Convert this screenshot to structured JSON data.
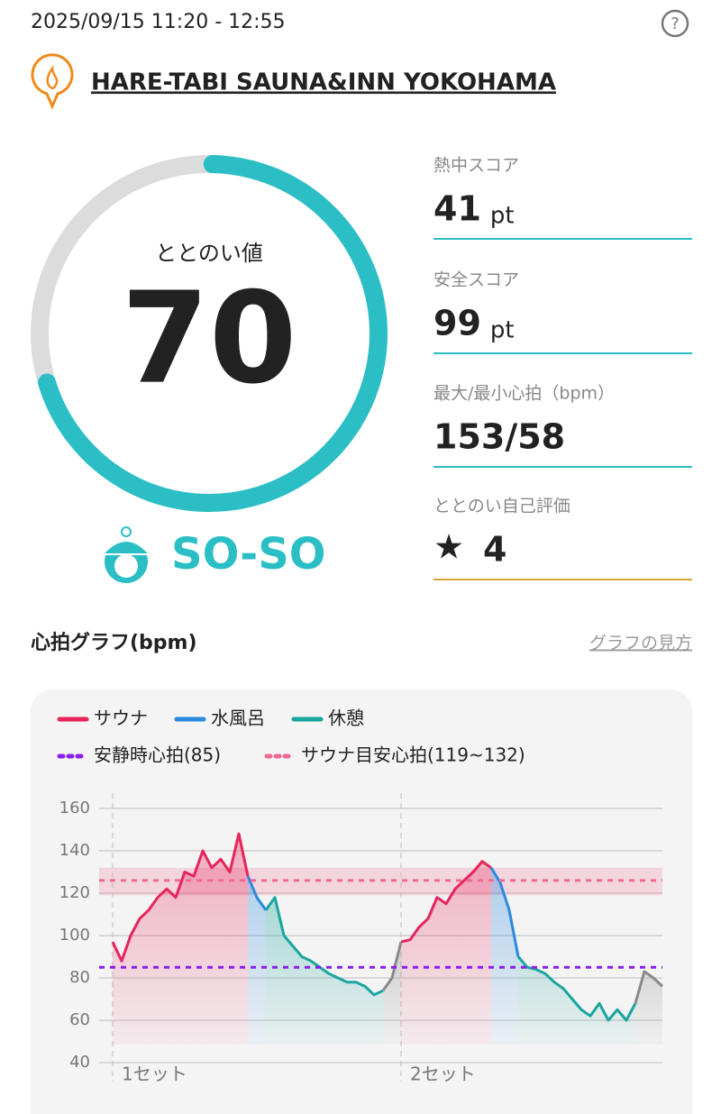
{
  "header": {
    "datetime": "2025/09/15 11:20 - 12:55",
    "venue": "HARE-TABI SAUNA&INN YOKOHAMA"
  },
  "score": {
    "label": "ととのい値",
    "value": 70,
    "range": [
      0,
      100
    ],
    "status": "SO-SO"
  },
  "metrics": [
    {
      "label": "熱中スコア",
      "value": "41",
      "unit": "pt"
    },
    {
      "label": "安全スコア",
      "value": "99",
      "unit": "pt"
    },
    {
      "label": "最大/最小心拍（bpm）",
      "value": "153/58"
    },
    {
      "label": "ととのい自己評価",
      "value": "4"
    }
  ],
  "graph_section": {
    "title": "心拍グラフ(bpm)",
    "link": "グラフの見方"
  },
  "chart_data": {
    "type": "line",
    "ylim": [
      40,
      160
    ],
    "yticks": [
      40,
      60,
      80,
      100,
      120,
      140,
      160
    ],
    "grid": true,
    "set_labels": [
      "1セット",
      "2セット"
    ],
    "rest_hr": {
      "label": "安静時心拍(85)",
      "value": 85,
      "color": "#8a1cf0"
    },
    "sauna_target": {
      "label": "サウナ目安心拍(119~132)",
      "low": 119,
      "high": 132,
      "line": 126,
      "color": "#f06a90"
    },
    "series": [
      {
        "name": "サウナ",
        "color": "#e8245a",
        "values": [
          97,
          88,
          100,
          108,
          112,
          118,
          122,
          118,
          130,
          128,
          140,
          132,
          136,
          130,
          148,
          128,
          null,
          null,
          null,
          null,
          null,
          null,
          null,
          null,
          null,
          null,
          null,
          null,
          null,
          null,
          null,
          null,
          97,
          98,
          104,
          108,
          118,
          115,
          122,
          126,
          130,
          135,
          132,
          null,
          null,
          null,
          null,
          null,
          null,
          null,
          null,
          null,
          null,
          null,
          null,
          null,
          null,
          null,
          null,
          null,
          null,
          null
        ]
      },
      {
        "name": "水風呂",
        "color": "#2a8ae0",
        "values": [
          null,
          null,
          null,
          null,
          null,
          null,
          null,
          null,
          null,
          null,
          null,
          null,
          null,
          null,
          null,
          128,
          118,
          112,
          null,
          null,
          null,
          null,
          null,
          null,
          null,
          null,
          null,
          null,
          null,
          null,
          null,
          null,
          null,
          null,
          null,
          null,
          null,
          null,
          null,
          null,
          null,
          null,
          132,
          125,
          112,
          90,
          null,
          null,
          null,
          null,
          null,
          null,
          null,
          null,
          null,
          null,
          null,
          null,
          null,
          null,
          null,
          null
        ]
      },
      {
        "name": "休憩",
        "color": "#1aa59e",
        "values": [
          null,
          null,
          null,
          null,
          null,
          null,
          null,
          null,
          null,
          null,
          null,
          null,
          null,
          null,
          null,
          null,
          null,
          112,
          118,
          100,
          95,
          90,
          88,
          85,
          82,
          80,
          78,
          78,
          76,
          72,
          74,
          null,
          null,
          null,
          null,
          null,
          null,
          null,
          null,
          null,
          null,
          null,
          null,
          null,
          null,
          90,
          85,
          84,
          82,
          78,
          75,
          70,
          65,
          62,
          68,
          60,
          65,
          60,
          68,
          null,
          null,
          null
        ]
      },
      {
        "color": "#8a8a8a",
        "values": [
          null,
          null,
          null,
          null,
          null,
          null,
          null,
          null,
          null,
          null,
          null,
          null,
          null,
          null,
          null,
          null,
          null,
          null,
          null,
          null,
          null,
          null,
          null,
          null,
          null,
          null,
          null,
          null,
          null,
          null,
          74,
          80,
          97,
          null,
          null,
          null,
          null,
          null,
          null,
          null,
          null,
          null,
          null,
          null,
          null,
          null,
          null,
          null,
          null,
          null,
          null,
          null,
          null,
          null,
          null,
          null,
          null,
          null,
          68,
          83,
          80,
          76
        ]
      }
    ]
  }
}
